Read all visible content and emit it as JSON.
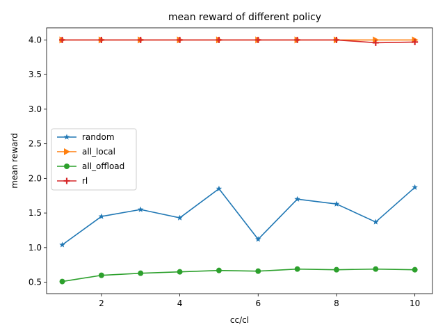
{
  "chart_data": {
    "type": "line",
    "title": "mean reward of different policy",
    "xlabel": "cc/cl",
    "ylabel": "mean reward",
    "xlim": [
      0.6,
      10.45
    ],
    "ylim": [
      0.335,
      4.175
    ],
    "xticks": [
      2,
      4,
      6,
      8,
      10
    ],
    "yticks": [
      0.5,
      1.0,
      1.5,
      2.0,
      2.5,
      3.0,
      3.5,
      4.0
    ],
    "grid": false,
    "legend_position": "center-left",
    "x": [
      1,
      2,
      3,
      4,
      5,
      6,
      7,
      8,
      9,
      10
    ],
    "series": [
      {
        "name": "random",
        "color": "#1f77b4",
        "marker": "star",
        "values": [
          1.04,
          1.45,
          1.55,
          1.43,
          1.85,
          1.12,
          1.7,
          1.63,
          1.37,
          1.87
        ]
      },
      {
        "name": "all_local",
        "color": "#ff7f0e",
        "marker": "triangle-right",
        "values": [
          4.0,
          4.0,
          4.0,
          4.0,
          4.0,
          4.0,
          4.0,
          4.0,
          4.0,
          4.0
        ]
      },
      {
        "name": "all_offload",
        "color": "#2ca02c",
        "marker": "circle",
        "values": [
          0.51,
          0.6,
          0.63,
          0.65,
          0.67,
          0.66,
          0.69,
          0.68,
          0.69,
          0.68
        ]
      },
      {
        "name": "rl",
        "color": "#d62728",
        "marker": "plus",
        "values": [
          4.0,
          4.0,
          4.0,
          4.0,
          4.0,
          4.0,
          4.0,
          4.0,
          3.96,
          3.97
        ]
      }
    ]
  }
}
